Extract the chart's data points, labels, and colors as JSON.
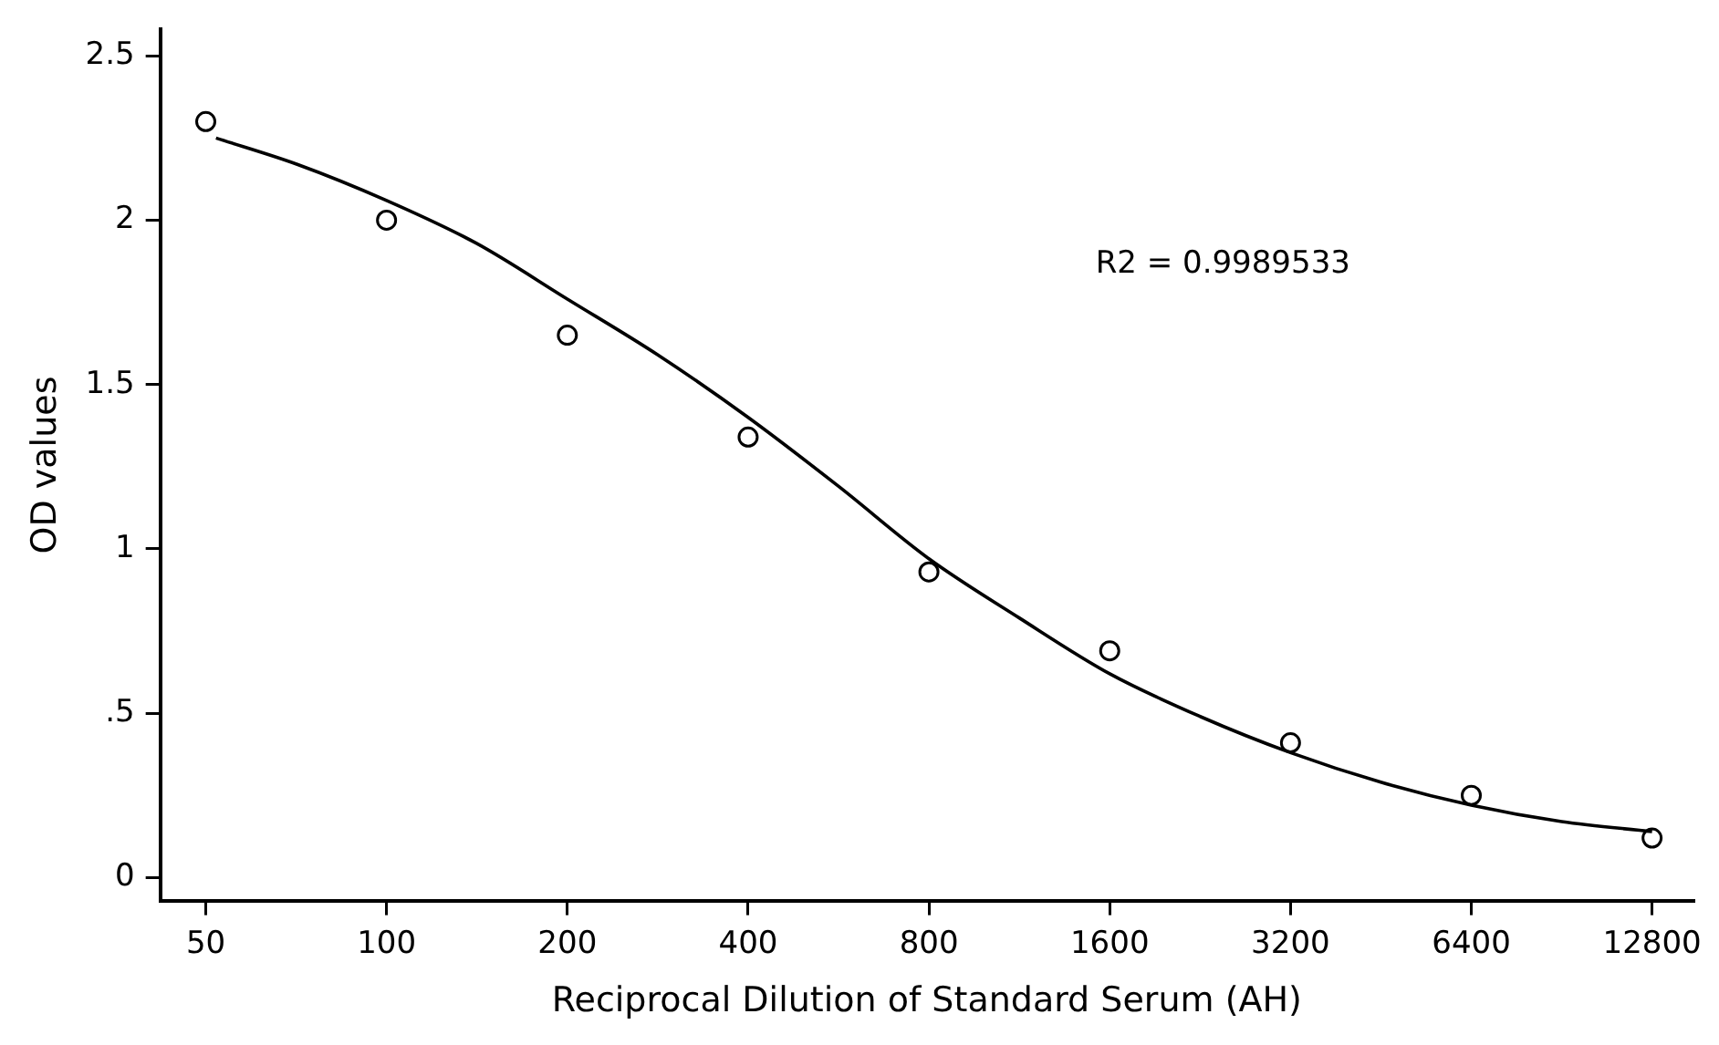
{
  "chart_data": {
    "type": "scatter",
    "xlabel": "Reciprocal Dilution of Standard Serum (AH)",
    "ylabel": "OD values",
    "log": "x",
    "grid": false,
    "legend": false,
    "xlim": [
      42,
      15000
    ],
    "xticks": [
      50,
      100,
      200,
      400,
      800,
      1600,
      3200,
      6400,
      12800
    ],
    "ylim": [
      -0.07,
      2.58
    ],
    "yticks": [
      0,
      {
        "value": 0.5,
        "label": ".5"
      },
      1,
      1.5,
      2,
      2.5
    ],
    "annotations": [
      "R2 = 0.9989533"
    ],
    "series": [
      {
        "color": "#000000",
        "marker": "circle",
        "x": [
          50,
          100,
          200,
          400,
          800,
          1600,
          3200,
          6400,
          12800
        ],
        "values": [
          2.3,
          2.0,
          1.65,
          1.34,
          0.93,
          0.69,
          0.41,
          0.25,
          0.12
        ]
      },
      {
        "type": "line",
        "color": "#000000",
        "marker": "none",
        "line_style": "solid",
        "x": [
          52,
          71,
          100,
          141,
          200,
          283,
          400,
          566,
          800,
          1131,
          1600,
          2263,
          3200,
          4525,
          6400,
          9051,
          12800
        ],
        "values": [
          2.25,
          2.17,
          2.06,
          1.93,
          1.76,
          1.59,
          1.4,
          1.19,
          0.97,
          0.79,
          0.62,
          0.49,
          0.38,
          0.29,
          0.22,
          0.17,
          0.14
        ]
      }
    ]
  }
}
